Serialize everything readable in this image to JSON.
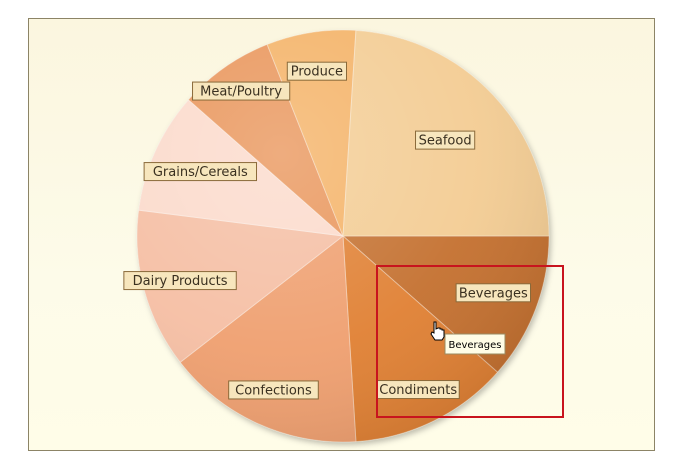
{
  "chart_data": {
    "type": "pie",
    "slices": [
      {
        "label": "Beverages",
        "value": 11.5,
        "color": "#c4702f"
      },
      {
        "label": "Condiments",
        "value": 12.5,
        "color": "#e08033"
      },
      {
        "label": "Confections",
        "value": 15.5,
        "color": "#ef9f6f"
      },
      {
        "label": "Dairy Products",
        "value": 12.5,
        "color": "#f5bea3"
      },
      {
        "label": "Grains/Cereals",
        "value": 9.5,
        "color": "#fbdacb"
      },
      {
        "label": "Meat/Poultry",
        "value": 7.5,
        "color": "#e9955a"
      },
      {
        "label": "Produce",
        "value": 7.0,
        "color": "#f4b266"
      },
      {
        "label": "Seafood",
        "value": 24.0,
        "color": "#f3cc93"
      }
    ],
    "start_angle_deg": 0,
    "direction": "clockwise",
    "highlighted": "Beverages",
    "tooltip": "Beverages",
    "legend": "none",
    "grid": false
  },
  "colors": {
    "selection_rect": "#c8141e",
    "label_fill": "#f7e6bd",
    "label_border": "#8a6a3a"
  }
}
